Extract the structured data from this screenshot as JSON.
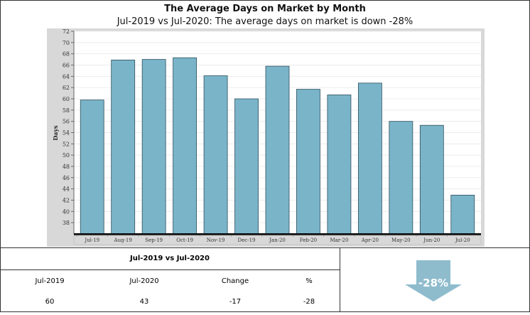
{
  "title": "The Average Days on Market by Month",
  "subtitle": "Jul-2019 vs Jul-2020: The average days on market is down -28%",
  "chart_data": {
    "type": "bar",
    "categories": [
      "Jul-19",
      "Aug-19",
      "Sep-19",
      "Oct-19",
      "Nov-19",
      "Dec-19",
      "Jan-20",
      "Feb-20",
      "Mar-20",
      "Apr-20",
      "May-20",
      "Jun-20",
      "Jul-20"
    ],
    "values": [
      59.8,
      66.9,
      67.0,
      67.3,
      64.1,
      60.0,
      65.8,
      61.7,
      60.7,
      62.8,
      56.0,
      55.3,
      42.9
    ],
    "ylabel": "Days",
    "ylim": [
      36,
      72
    ],
    "yticks": [
      38,
      40,
      42,
      44,
      46,
      48,
      50,
      52,
      54,
      56,
      58,
      60,
      62,
      64,
      66,
      68,
      70,
      72
    ],
    "bar_color": "#7ab4c9"
  },
  "summary": {
    "heading": "Jul-2019 vs Jul-2020",
    "col1_label": "Jul-2019",
    "col2_label": "Jul-2020",
    "col3_label": "Change",
    "col4_label": "%",
    "col1_value": "60",
    "col2_value": "43",
    "col3_value": "-17",
    "col4_value": "-28",
    "badge": "-28%",
    "arrow_color": "#8fbccd"
  }
}
